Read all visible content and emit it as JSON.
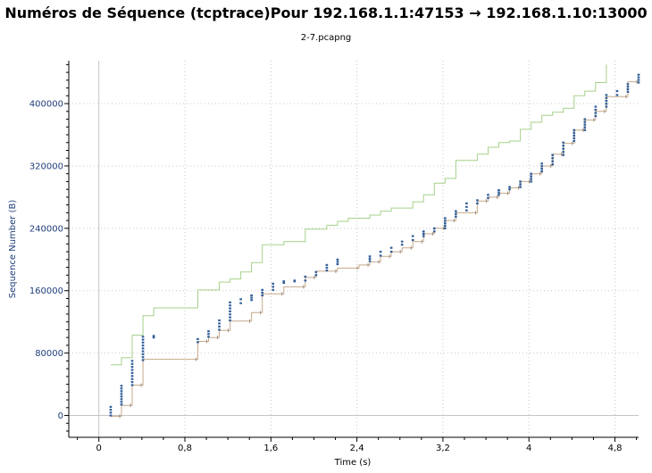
{
  "window": {
    "title": "Numéros de Séquence (tcptrace)Pour 192.168.1.1:47153 → 192.168.1.10:13000",
    "subtitle": "2-7.pcapng"
  },
  "chart_data": {
    "type": "line",
    "title": "Numéros de Séquence (tcptrace)Pour 192.168.1.1:47153 → 192.168.1.10:13000",
    "subtitle": "2-7.pcapng",
    "xlabel": "Time (s)",
    "ylabel": "Sequence Number (B)",
    "xlim": [
      -0.28,
      5.02
    ],
    "ylim": [
      -28000,
      455000
    ],
    "xticks": [
      0,
      0.8,
      1.6,
      2.4,
      3.2,
      4,
      4.8
    ],
    "xtick_labels": [
      "0",
      "0,8",
      "1,6",
      "2,4",
      "3,2",
      "4",
      "4,8"
    ],
    "yticks": [
      0,
      80000,
      160000,
      240000,
      320000,
      400000
    ],
    "ytick_labels": [
      "0",
      "80000",
      "160000",
      "240000",
      "320000",
      "400000"
    ],
    "grid": true,
    "colors": {
      "window": "#a6d18a",
      "ack": "#c7a98a",
      "segments": "#2f5d99",
      "axis_text": "#1f3d7a",
      "grid": "#c8c8c8"
    },
    "series": [
      {
        "style": "step-line",
        "role": "receive window",
        "points": [
          [
            0.11,
            65000
          ],
          [
            0.21,
            65000
          ],
          [
            0.21,
            74000
          ],
          [
            0.31,
            74000
          ],
          [
            0.31,
            103000
          ],
          [
            0.41,
            103000
          ],
          [
            0.41,
            128000
          ],
          [
            0.51,
            128000
          ],
          [
            0.51,
            138000
          ],
          [
            0.92,
            138000
          ],
          [
            0.92,
            161000
          ],
          [
            1.12,
            161000
          ],
          [
            1.12,
            171000
          ],
          [
            1.22,
            171000
          ],
          [
            1.22,
            175000
          ],
          [
            1.32,
            175000
          ],
          [
            1.32,
            184000
          ],
          [
            1.42,
            184000
          ],
          [
            1.42,
            196000
          ],
          [
            1.52,
            196000
          ],
          [
            1.52,
            219000
          ],
          [
            1.72,
            219000
          ],
          [
            1.72,
            223000
          ],
          [
            1.92,
            223000
          ],
          [
            1.92,
            239000
          ],
          [
            2.12,
            239000
          ],
          [
            2.12,
            244000
          ],
          [
            2.22,
            244000
          ],
          [
            2.22,
            249000
          ],
          [
            2.32,
            249000
          ],
          [
            2.32,
            253000
          ],
          [
            2.52,
            253000
          ],
          [
            2.52,
            257000
          ],
          [
            2.62,
            257000
          ],
          [
            2.62,
            262000
          ],
          [
            2.72,
            262000
          ],
          [
            2.72,
            266000
          ],
          [
            2.92,
            266000
          ],
          [
            2.92,
            274000
          ],
          [
            3.02,
            274000
          ],
          [
            3.02,
            283000
          ],
          [
            3.12,
            283000
          ],
          [
            3.12,
            298000
          ],
          [
            3.22,
            298000
          ],
          [
            3.22,
            304000
          ],
          [
            3.32,
            304000
          ],
          [
            3.32,
            327000
          ],
          [
            3.52,
            327000
          ],
          [
            3.52,
            335000
          ],
          [
            3.62,
            335000
          ],
          [
            3.62,
            344000
          ],
          [
            3.72,
            344000
          ],
          [
            3.72,
            350000
          ],
          [
            3.82,
            350000
          ],
          [
            3.82,
            352000
          ],
          [
            3.92,
            352000
          ],
          [
            3.92,
            367000
          ],
          [
            4.02,
            367000
          ],
          [
            4.02,
            376000
          ],
          [
            4.12,
            376000
          ],
          [
            4.12,
            385000
          ],
          [
            4.22,
            385000
          ],
          [
            4.22,
            389000
          ],
          [
            4.32,
            389000
          ],
          [
            4.32,
            394000
          ],
          [
            4.42,
            394000
          ],
          [
            4.42,
            410000
          ],
          [
            4.52,
            410000
          ],
          [
            4.52,
            416000
          ],
          [
            4.62,
            416000
          ],
          [
            4.62,
            427000
          ],
          [
            4.72,
            427000
          ],
          [
            4.72,
            450000
          ]
        ]
      },
      {
        "style": "step-line",
        "role": "acknowledged",
        "points": [
          [
            0.11,
            -1000
          ],
          [
            0.21,
            -1000
          ],
          [
            0.21,
            13000
          ],
          [
            0.31,
            13000
          ],
          [
            0.31,
            39000
          ],
          [
            0.41,
            39000
          ],
          [
            0.41,
            72000
          ],
          [
            0.92,
            72000
          ],
          [
            0.92,
            95000
          ],
          [
            1.02,
            95000
          ],
          [
            1.02,
            100000
          ],
          [
            1.12,
            100000
          ],
          [
            1.12,
            109000
          ],
          [
            1.22,
            109000
          ],
          [
            1.22,
            121000
          ],
          [
            1.42,
            121000
          ],
          [
            1.42,
            132000
          ],
          [
            1.52,
            132000
          ],
          [
            1.52,
            156000
          ],
          [
            1.72,
            156000
          ],
          [
            1.72,
            165000
          ],
          [
            1.92,
            165000
          ],
          [
            1.92,
            177000
          ],
          [
            2.02,
            177000
          ],
          [
            2.02,
            185000
          ],
          [
            2.22,
            185000
          ],
          [
            2.22,
            189000
          ],
          [
            2.42,
            189000
          ],
          [
            2.42,
            193000
          ],
          [
            2.52,
            193000
          ],
          [
            2.52,
            197000
          ],
          [
            2.62,
            197000
          ],
          [
            2.62,
            204000
          ],
          [
            2.72,
            204000
          ],
          [
            2.72,
            210000
          ],
          [
            2.82,
            210000
          ],
          [
            2.82,
            215000
          ],
          [
            2.92,
            215000
          ],
          [
            2.92,
            223000
          ],
          [
            3.02,
            223000
          ],
          [
            3.02,
            233000
          ],
          [
            3.12,
            233000
          ],
          [
            3.12,
            240000
          ],
          [
            3.22,
            240000
          ],
          [
            3.22,
            250000
          ],
          [
            3.32,
            250000
          ],
          [
            3.32,
            260000
          ],
          [
            3.52,
            260000
          ],
          [
            3.52,
            275000
          ],
          [
            3.62,
            275000
          ],
          [
            3.62,
            280000
          ],
          [
            3.72,
            280000
          ],
          [
            3.72,
            285000
          ],
          [
            3.82,
            285000
          ],
          [
            3.82,
            292000
          ],
          [
            3.92,
            292000
          ],
          [
            3.92,
            300000
          ],
          [
            4.02,
            300000
          ],
          [
            4.02,
            310000
          ],
          [
            4.12,
            310000
          ],
          [
            4.12,
            320000
          ],
          [
            4.22,
            320000
          ],
          [
            4.22,
            335000
          ],
          [
            4.32,
            335000
          ],
          [
            4.32,
            349000
          ],
          [
            4.42,
            349000
          ],
          [
            4.42,
            366000
          ],
          [
            4.52,
            366000
          ],
          [
            4.52,
            379000
          ],
          [
            4.62,
            379000
          ],
          [
            4.62,
            390000
          ],
          [
            4.72,
            390000
          ],
          [
            4.72,
            409000
          ],
          [
            4.92,
            409000
          ],
          [
            4.92,
            428000
          ],
          [
            5.02,
            428000
          ]
        ]
      },
      {
        "style": "segments",
        "role": "sent data",
        "bursts": [
          [
            0.11,
            0,
            11000
          ],
          [
            0.21,
            14000,
            38000
          ],
          [
            0.31,
            39000,
            70000
          ],
          [
            0.41,
            71000,
            101000
          ],
          [
            0.51,
            100000,
            102000
          ],
          [
            0.92,
            94000,
            98000
          ],
          [
            1.02,
            101000,
            108000
          ],
          [
            1.12,
            110000,
            122000
          ],
          [
            1.22,
            122000,
            145000
          ],
          [
            1.32,
            144000,
            149000
          ],
          [
            1.42,
            148000,
            154000
          ],
          [
            1.52,
            154000,
            161000
          ],
          [
            1.62,
            161000,
            169000
          ],
          [
            1.72,
            170000,
            172000
          ],
          [
            1.82,
            172000,
            173000
          ],
          [
            1.92,
            173000,
            178000
          ],
          [
            2.02,
            180000,
            184000
          ],
          [
            2.12,
            186000,
            193000
          ],
          [
            2.22,
            194000,
            200000
          ],
          [
            2.52,
            198000,
            204000
          ],
          [
            2.62,
            205000,
            210000
          ],
          [
            2.72,
            210000,
            215000
          ],
          [
            2.82,
            219000,
            223000
          ],
          [
            2.92,
            225000,
            230000
          ],
          [
            3.02,
            230000,
            236000
          ],
          [
            3.12,
            236000,
            240000
          ],
          [
            3.22,
            240000,
            253000
          ],
          [
            3.32,
            255000,
            262000
          ],
          [
            3.42,
            263000,
            272000
          ],
          [
            3.52,
            272000,
            276000
          ],
          [
            3.62,
            279000,
            283000
          ],
          [
            3.72,
            283000,
            289000
          ],
          [
            3.82,
            290000,
            293000
          ],
          [
            3.92,
            293000,
            300000
          ],
          [
            4.02,
            300000,
            310000
          ],
          [
            4.12,
            313000,
            323000
          ],
          [
            4.22,
            322000,
            334000
          ],
          [
            4.32,
            334000,
            350000
          ],
          [
            4.42,
            352000,
            366000
          ],
          [
            4.52,
            366000,
            380000
          ],
          [
            4.62,
            384000,
            396000
          ],
          [
            4.72,
            396000,
            411000
          ],
          [
            4.82,
            411000,
            416000
          ],
          [
            4.92,
            415000,
            425000
          ],
          [
            5.02,
            427000,
            437000
          ]
        ]
      }
    ]
  }
}
